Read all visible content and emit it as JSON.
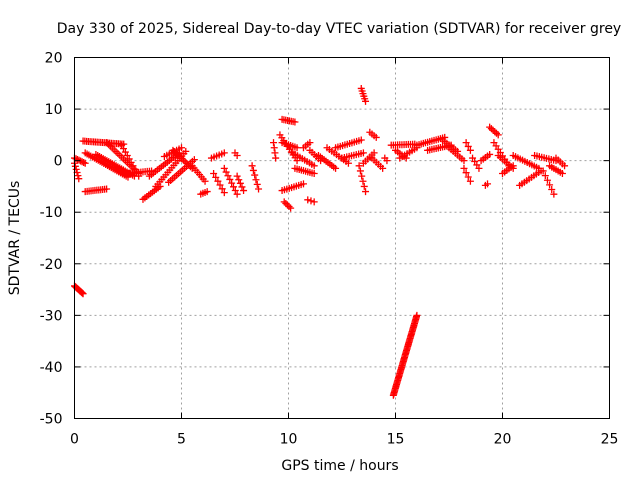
{
  "chart_data": {
    "type": "scatter",
    "title": "Day 330 of 2025, Sidereal Day-to-day VTEC variation (SDTVAR) for receiver grey",
    "xlabel": "GPS time / hours",
    "ylabel": "SDTVAR / TECUs",
    "xlim": [
      0,
      25
    ],
    "ylim": [
      -50,
      20
    ],
    "xticks": [
      0,
      5,
      10,
      15,
      20,
      25
    ],
    "yticks": [
      -50,
      -40,
      -30,
      -20,
      -10,
      0,
      10,
      20
    ],
    "grid": true,
    "marker": "plus",
    "color": "#ff0000",
    "series": [
      {
        "name": "SDTVAR",
        "segments": [
          {
            "x0": 0.0,
            "x1": 0.4,
            "y": [
              -24.3,
              -25.8
            ],
            "n": 14
          },
          {
            "x0": 14.9,
            "x1": 16.0,
            "y": [
              -45.5,
              -30.0
            ],
            "n": 60
          },
          {
            "x0": 0.0,
            "x1": 0.2,
            "y": [
              -0.5,
              -3.5
            ],
            "n": 6
          },
          {
            "x0": 0.0,
            "x1": 0.5,
            "y": [
              0.5,
              -0.5
            ],
            "n": 8
          },
          {
            "x0": 0.4,
            "x1": 2.3,
            "y": [
              3.8,
              3.2
            ],
            "n": 24
          },
          {
            "x0": 0.5,
            "x1": 1.5,
            "y": [
              -6.0,
              -5.5
            ],
            "n": 12
          },
          {
            "x0": 0.5,
            "x1": 2.5,
            "y": [
              1.5,
              -3.2
            ],
            "n": 24
          },
          {
            "x0": 1.0,
            "x1": 2.8,
            "y": [
              1.2,
              -3.0
            ],
            "n": 22
          },
          {
            "x0": 1.5,
            "x1": 3.0,
            "y": [
              3.5,
              -2.5
            ],
            "n": 18
          },
          {
            "x0": 2.2,
            "x1": 3.0,
            "y": [
              3.0,
              -3.0
            ],
            "n": 10
          },
          {
            "x0": 2.5,
            "x1": 3.6,
            "y": [
              -2.5,
              -2.0
            ],
            "n": 12
          },
          {
            "x0": 3.2,
            "x1": 4.0,
            "y": [
              -7.5,
              -5.0
            ],
            "n": 10
          },
          {
            "x0": 3.5,
            "x1": 4.9,
            "y": [
              -3.0,
              1.5
            ],
            "n": 16
          },
          {
            "x0": 3.8,
            "x1": 5.2,
            "y": [
              -5.0,
              1.8
            ],
            "n": 16
          },
          {
            "x0": 4.4,
            "x1": 5.6,
            "y": [
              -4.2,
              0.2
            ],
            "n": 14
          },
          {
            "x0": 4.6,
            "x1": 5.5,
            "y": [
              2.0,
              -1.5
            ],
            "n": 12
          },
          {
            "x0": 4.2,
            "x1": 5.0,
            "y": [
              0.8,
              2.5
            ],
            "n": 8
          },
          {
            "x0": 5.5,
            "x1": 6.1,
            "y": [
              -1.0,
              -4.0
            ],
            "n": 8
          },
          {
            "x0": 5.9,
            "x1": 6.2,
            "y": [
              -6.5,
              -6.0
            ],
            "n": 4
          },
          {
            "x0": 6.4,
            "x1": 7.0,
            "y": [
              0.5,
              1.5
            ],
            "n": 6
          },
          {
            "x0": 6.5,
            "x1": 7.0,
            "y": [
              -2.5,
              -6.2
            ],
            "n": 6
          },
          {
            "x0": 7.0,
            "x1": 7.6,
            "y": [
              -1.5,
              -6.5
            ],
            "n": 8
          },
          {
            "x0": 7.5,
            "x1": 7.6,
            "y": [
              1.5,
              1.0
            ],
            "n": 2
          },
          {
            "x0": 7.6,
            "x1": 7.9,
            "y": [
              -3.0,
              -5.8
            ],
            "n": 5
          },
          {
            "x0": 8.3,
            "x1": 8.6,
            "y": [
              -1.0,
              -5.5
            ],
            "n": 6
          },
          {
            "x0": 9.3,
            "x1": 9.4,
            "y": [
              3.5,
              0.5
            ],
            "n": 4
          },
          {
            "x0": 9.7,
            "x1": 10.3,
            "y": [
              8.0,
              7.5
            ],
            "n": 8
          },
          {
            "x0": 9.6,
            "x1": 10.4,
            "y": [
              5.0,
              0.0
            ],
            "n": 10
          },
          {
            "x0": 9.7,
            "x1": 10.4,
            "y": [
              3.5,
              2.5
            ],
            "n": 8
          },
          {
            "x0": 9.8,
            "x1": 10.1,
            "y": [
              -8.0,
              -9.2
            ],
            "n": 5
          },
          {
            "x0": 9.7,
            "x1": 10.7,
            "y": [
              -5.8,
              -4.5
            ],
            "n": 10
          },
          {
            "x0": 10.3,
            "x1": 11.2,
            "y": [
              -1.5,
              -2.5
            ],
            "n": 10
          },
          {
            "x0": 10.2,
            "x1": 11.2,
            "y": [
              1.5,
              -1.0
            ],
            "n": 10
          },
          {
            "x0": 10.7,
            "x1": 11.0,
            "y": [
              2.5,
              3.5
            ],
            "n": 4
          },
          {
            "x0": 10.9,
            "x1": 11.2,
            "y": [
              -7.6,
              -8.0
            ],
            "n": 3
          },
          {
            "x0": 11.0,
            "x1": 11.5,
            "y": [
              2.0,
              0.0
            ],
            "n": 6
          },
          {
            "x0": 11.4,
            "x1": 12.2,
            "y": [
              1.0,
              -1.5
            ],
            "n": 10
          },
          {
            "x0": 11.8,
            "x1": 12.8,
            "y": [
              2.5,
              -0.5
            ],
            "n": 10
          },
          {
            "x0": 12.2,
            "x1": 13.4,
            "y": [
              2.5,
              4.0
            ],
            "n": 12
          },
          {
            "x0": 12.5,
            "x1": 13.5,
            "y": [
              0.5,
              1.5
            ],
            "n": 10
          },
          {
            "x0": 13.4,
            "x1": 13.6,
            "y": [
              14.0,
              11.5
            ],
            "n": 6
          },
          {
            "x0": 13.3,
            "x1": 13.6,
            "y": [
              -1.0,
              -6.0
            ],
            "n": 6
          },
          {
            "x0": 13.5,
            "x1": 14.0,
            "y": [
              -0.5,
              1.5
            ],
            "n": 6
          },
          {
            "x0": 13.8,
            "x1": 14.1,
            "y": [
              5.5,
              4.5
            ],
            "n": 4
          },
          {
            "x0": 13.9,
            "x1": 14.4,
            "y": [
              0.5,
              -1.5
            ],
            "n": 6
          },
          {
            "x0": 14.5,
            "x1": 14.6,
            "y": [
              0.5,
              0.0
            ],
            "n": 2
          },
          {
            "x0": 14.8,
            "x1": 15.9,
            "y": [
              3.0,
              3.2
            ],
            "n": 12
          },
          {
            "x0": 15.0,
            "x1": 15.5,
            "y": [
              2.0,
              0.5
            ],
            "n": 6
          },
          {
            "x0": 15.2,
            "x1": 16.0,
            "y": [
              0.5,
              2.5
            ],
            "n": 8
          },
          {
            "x0": 16.0,
            "x1": 17.3,
            "y": [
              3.0,
              4.5
            ],
            "n": 14
          },
          {
            "x0": 16.5,
            "x1": 17.6,
            "y": [
              2.0,
              3.0
            ],
            "n": 12
          },
          {
            "x0": 17.2,
            "x1": 17.9,
            "y": [
              4.0,
              1.8
            ],
            "n": 8
          },
          {
            "x0": 17.5,
            "x1": 18.2,
            "y": [
              2.5,
              0.0
            ],
            "n": 8
          },
          {
            "x0": 18.2,
            "x1": 18.5,
            "y": [
              -1.5,
              -4.0
            ],
            "n": 4
          },
          {
            "x0": 18.3,
            "x1": 18.5,
            "y": [
              3.5,
              2.0
            ],
            "n": 3
          },
          {
            "x0": 18.6,
            "x1": 18.9,
            "y": [
              0.5,
              -1.5
            ],
            "n": 4
          },
          {
            "x0": 19.2,
            "x1": 19.3,
            "y": [
              -4.8,
              -4.5
            ],
            "n": 2
          },
          {
            "x0": 19.0,
            "x1": 19.4,
            "y": [
              0.0,
              1.2
            ],
            "n": 5
          },
          {
            "x0": 19.4,
            "x1": 19.8,
            "y": [
              6.5,
              5.0
            ],
            "n": 6
          },
          {
            "x0": 19.6,
            "x1": 20.3,
            "y": [
              3.5,
              -1.0
            ],
            "n": 8
          },
          {
            "x0": 19.8,
            "x1": 20.5,
            "y": [
              1.0,
              -1.5
            ],
            "n": 8
          },
          {
            "x0": 20.0,
            "x1": 20.5,
            "y": [
              -2.5,
              -1.0
            ],
            "n": 6
          },
          {
            "x0": 20.5,
            "x1": 21.7,
            "y": [
              1.0,
              -1.5
            ],
            "n": 12
          },
          {
            "x0": 20.8,
            "x1": 21.8,
            "y": [
              -4.8,
              -2.0
            ],
            "n": 10
          },
          {
            "x0": 21.5,
            "x1": 22.5,
            "y": [
              1.0,
              0.0
            ],
            "n": 10
          },
          {
            "x0": 21.9,
            "x1": 22.4,
            "y": [
              -2.0,
              -6.5
            ],
            "n": 6
          },
          {
            "x0": 22.2,
            "x1": 22.8,
            "y": [
              -1.0,
              -2.5
            ],
            "n": 7
          },
          {
            "x0": 22.5,
            "x1": 22.9,
            "y": [
              0.5,
              -1.0
            ],
            "n": 5
          }
        ]
      }
    ]
  }
}
